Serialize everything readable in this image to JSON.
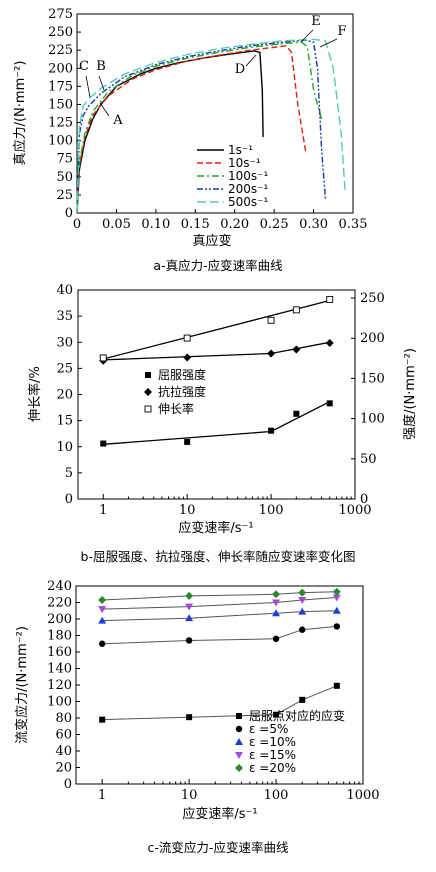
{
  "chart_data": [
    {
      "type": "line",
      "id": "a",
      "caption": "a-真应力-应变速率曲线",
      "xlabel": "真应变",
      "ylabel": "真应力/(N·mm⁻²)",
      "xlim": [
        0,
        0.35
      ],
      "ylim": [
        0,
        275
      ],
      "xticks": [
        "0",
        "0.05",
        "0.10",
        "0.15",
        "0.20",
        "0.25",
        "0.30",
        "0.35"
      ],
      "yticks": [
        "0",
        "25",
        "50",
        "75",
        "100",
        "125",
        "150",
        "175",
        "200",
        "225",
        "250",
        "275"
      ],
      "legend_position": "right-middle",
      "series": [
        {
          "name": "1s⁻¹",
          "color": "#000000",
          "dash": "solid",
          "x": [
            0,
            0.003,
            0.01,
            0.02,
            0.03,
            0.05,
            0.08,
            0.1,
            0.13,
            0.16,
            0.19,
            0.21,
            0.225,
            0.232,
            0.235,
            0.236
          ],
          "y": [
            0,
            60,
            100,
            130,
            150,
            175,
            192,
            200,
            208,
            214,
            219,
            222,
            224,
            222,
            170,
            105
          ]
        },
        {
          "name": "10s⁻¹",
          "color": "#e0201a",
          "dash": "dash",
          "x": [
            0,
            0.003,
            0.01,
            0.02,
            0.04,
            0.07,
            0.1,
            0.14,
            0.18,
            0.22,
            0.25,
            0.265,
            0.272,
            0.28,
            0.29
          ],
          "y": [
            0,
            65,
            105,
            135,
            162,
            185,
            198,
            210,
            218,
            225,
            229,
            231,
            222,
            150,
            85
          ]
        },
        {
          "name": "100s⁻¹",
          "color": "#22aa22",
          "dash": "dashdot",
          "x": [
            0,
            0.003,
            0.01,
            0.02,
            0.04,
            0.07,
            0.1,
            0.14,
            0.18,
            0.22,
            0.26,
            0.285,
            0.292,
            0.3,
            0.31
          ],
          "y": [
            0,
            70,
            110,
            140,
            168,
            190,
            203,
            214,
            222,
            229,
            234,
            236,
            230,
            170,
            130
          ]
        },
        {
          "name": "200s⁻¹",
          "color": "#1a3aa8",
          "dash": "dashdotdot",
          "x": [
            0,
            0.003,
            0.008,
            0.015,
            0.03,
            0.06,
            0.1,
            0.14,
            0.18,
            0.22,
            0.26,
            0.29,
            0.3,
            0.305,
            0.31,
            0.315
          ],
          "y": [
            0,
            110,
            135,
            148,
            165,
            188,
            205,
            216,
            224,
            231,
            236,
            239,
            236,
            200,
            90,
            20
          ]
        },
        {
          "name": "500s⁻¹",
          "color": "#55ccbb",
          "dash": "longdash",
          "x": [
            0,
            0.003,
            0.008,
            0.015,
            0.03,
            0.06,
            0.1,
            0.14,
            0.18,
            0.22,
            0.26,
            0.3,
            0.315,
            0.325,
            0.335,
            0.34
          ],
          "y": [
            0,
            120,
            148,
            158,
            172,
            192,
            208,
            219,
            227,
            233,
            238,
            240,
            238,
            200,
            110,
            30
          ]
        }
      ],
      "annotations": [
        "A",
        "B",
        "C",
        "D",
        "E",
        "F"
      ]
    },
    {
      "type": "scatter",
      "id": "b",
      "caption": "b-屈服强度、抗拉强度、伸长率随应变速率变化图",
      "xlabel": "应变速率/s⁻¹",
      "ylabel_left": "伸长率/%",
      "ylabel_right": "强度/(N·mm⁻²)",
      "xscale": "log",
      "xlim": [
        0.5,
        1000
      ],
      "ylim_left": [
        0,
        40
      ],
      "ylim_right": [
        0,
        260
      ],
      "xticks": [
        "1",
        "10",
        "100",
        "1000"
      ],
      "yticks_left": [
        "0",
        "5",
        "10",
        "15",
        "20",
        "25",
        "30",
        "35",
        "40"
      ],
      "yticks_right": [
        "0",
        "50",
        "100",
        "150",
        "200",
        "250"
      ],
      "legend_position": "middle-left",
      "series": [
        {
          "name": "屈服强度",
          "marker": "square-filled",
          "axis": "right",
          "x": [
            1,
            10,
            100,
            200,
            500
          ],
          "y": [
            69,
            71,
            85,
            106,
            119
          ]
        },
        {
          "name": "抗拉强度",
          "marker": "diamond-filled",
          "axis": "right",
          "x": [
            1,
            10,
            100,
            200,
            500
          ],
          "y": [
            172,
            176,
            181,
            186,
            194
          ]
        },
        {
          "name": "伸长率",
          "marker": "square-open",
          "axis": "left",
          "x": [
            1,
            10,
            100,
            200,
            500
          ],
          "y": [
            27,
            30.8,
            34.2,
            36.2,
            38.2
          ]
        }
      ],
      "fit_lines": [
        {
          "series": "屈服强度",
          "x": [
            1,
            100,
            500
          ],
          "y": [
            68,
            84,
            121
          ]
        },
        {
          "series": "抗拉强度",
          "x": [
            1,
            100,
            500
          ],
          "y": [
            173,
            181,
            195
          ]
        },
        {
          "series": "伸长率",
          "x": [
            1,
            500
          ],
          "y": [
            26.8,
            38
          ]
        }
      ]
    },
    {
      "type": "scatter",
      "id": "c",
      "caption": "c-流变应力-应变速率曲线",
      "xlabel": "应变速率/s⁻¹",
      "ylabel": "流变应力/(N·mm⁻²)",
      "xscale": "log",
      "xlim": [
        0.5,
        1000
      ],
      "ylim": [
        0,
        240
      ],
      "xticks": [
        "1",
        "10",
        "100",
        "1000"
      ],
      "yticks": [
        "0",
        "20",
        "40",
        "60",
        "80",
        "100",
        "120",
        "140",
        "160",
        "180",
        "200",
        "220",
        "240"
      ],
      "legend_position": "bottom-right",
      "series": [
        {
          "name": "屈服点对应的应变",
          "marker": "square-filled",
          "color": "#000000",
          "x": [
            1,
            10,
            100,
            200,
            500
          ],
          "y": [
            78,
            81,
            84,
            102,
            119
          ]
        },
        {
          "name": "ε =5%",
          "marker": "circle-filled",
          "color": "#000000",
          "x": [
            1,
            10,
            100,
            200,
            500
          ],
          "y": [
            170,
            174,
            176,
            187,
            191
          ]
        },
        {
          "name": "ε =10%",
          "marker": "triangle-up",
          "color": "#1f3fd6",
          "x": [
            1,
            10,
            100,
            200,
            500
          ],
          "y": [
            198,
            201,
            207,
            209,
            210
          ]
        },
        {
          "name": "ε =15%",
          "marker": "triangle-down",
          "color": "#a34ad6",
          "x": [
            1,
            10,
            100,
            200,
            500
          ],
          "y": [
            212,
            215,
            220,
            223,
            226
          ]
        },
        {
          "name": "ε =20%",
          "marker": "diamond-filled",
          "color": "#2a8a2a",
          "x": [
            1,
            10,
            100,
            200,
            500
          ],
          "y": [
            223,
            228,
            230,
            232,
            233
          ]
        }
      ]
    }
  ]
}
